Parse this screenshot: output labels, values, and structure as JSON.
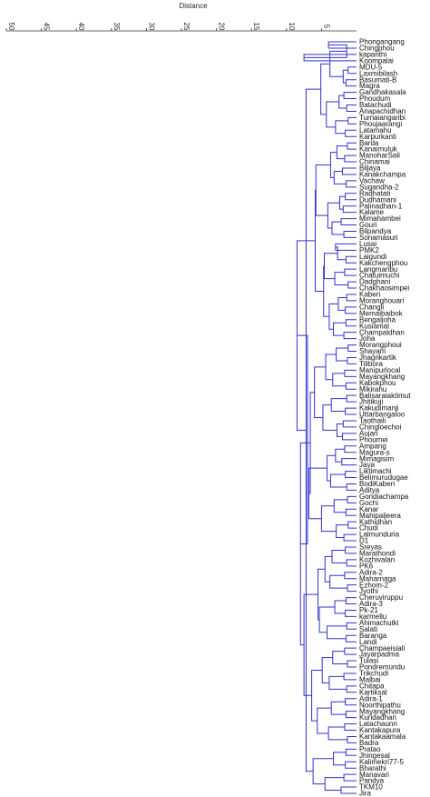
{
  "chart_data": {
    "type": "dendrogram",
    "xlabel": "Distance",
    "xlim": [
      50,
      0
    ],
    "ticks": [
      50,
      45,
      40,
      35,
      30,
      25,
      20,
      15,
      10,
      5
    ],
    "edge_color": "#3333cc",
    "leaves": [
      "Phongangang",
      "Chingphou",
      "kapanthi",
      "Koompalai",
      "MDU-5",
      "Laxmibilash",
      "Basumati-B",
      "Magra",
      "Gandhakasala",
      "Phoudum",
      "Batachudi",
      "Anapachidhan",
      "Turnaiangaribi",
      "Phoujaarangi",
      "Latamahu",
      "Karpurkanti",
      "Barda",
      "Kanaimuluk",
      "ManoharSali",
      "Chinamai",
      "Biljaya",
      "Kanakchampa",
      "Vachaw",
      "Sugandha-2",
      "Radhatati",
      "Dudhamani",
      "Palinadhan-1",
      "Kalame",
      "Mimahambei",
      "Gouri",
      "Bilpandya",
      "Sonamasuri",
      "Lusai",
      "PMK2",
      "Laigundi",
      "Kakchengphou",
      "Langmanbu",
      "Chatuimuchi",
      "Dadghani",
      "Chakhaosimpei",
      "Kaberi",
      "Moranghouari",
      "Changli",
      "Memaibaibok",
      "Bengaljoha",
      "Kusiamal",
      "Champaldhan",
      "Joha",
      "Morangphoui",
      "Shayam",
      "Jhagrikartik",
      "Tilibora",
      "Manipurlocal",
      "Mayangkhang",
      "Kabokphou",
      "Mikirahu",
      "Balisaraiaktimut",
      "Jhitikuji",
      "Kakudimanji",
      "Uttarbangaloo",
      "Taothaili",
      "Chingloechoi",
      "Aujari",
      "Phoumei",
      "Ampang",
      "Magura-s",
      "Mimagisim",
      "Jaya",
      "Liktimachi",
      "Belimurudugae",
      "BodiKaberi",
      "Aditya",
      "Gondiachampa",
      "Gochi",
      "Kanar",
      "Mahipaljeera",
      "Kathidhan",
      "Chudi",
      "Lalmunduria",
      "D1",
      "Sreyas",
      "Marathondi",
      "Kozhivalan",
      "PK6",
      "Adira-2",
      "Maharnaga",
      "Ezhom-2",
      "Jyothi",
      "Cheruviruppu",
      "Adira-3",
      "Pk-21",
      "karmellu",
      "Ahimachutki",
      "Salati",
      "Baranga",
      "Landi",
      "Champaeisiali",
      "Jayarpadma",
      "Tulasi",
      "Pondremundu",
      "Trikchudi",
      "Malbai",
      "Chitapa",
      "Kartiksal",
      "Adira-1",
      "Noorthipathu",
      "Mayangkhang",
      "Kuridadhan",
      "Latachaunri",
      "Kantakapura",
      "Kantakaamala",
      "Badra",
      "Pratao",
      "Jhingesal",
      "Kalimekri77-5",
      "Bharathi",
      "Manavari",
      "Pandya",
      "TKM10",
      "Jira"
    ],
    "links": [
      [
        0,
        1,
        4
      ],
      [
        2,
        3,
        7.5
      ],
      [
        4,
        5,
        1.2
      ],
      [
        6,
        7,
        1.5
      ],
      [
        8,
        9,
        1.8
      ],
      [
        10,
        11,
        1.4
      ],
      [
        12,
        13,
        1.2
      ],
      [
        14,
        15,
        1.6
      ],
      [
        16,
        17,
        1.3
      ],
      [
        18,
        19,
        1.7
      ],
      [
        20,
        21,
        2
      ],
      [
        22,
        23,
        1.5
      ],
      [
        24,
        25,
        1.6
      ],
      [
        26,
        27,
        1.9
      ],
      [
        28,
        29,
        2.2
      ],
      [
        30,
        31,
        1.8
      ],
      [
        32,
        33,
        3
      ],
      [
        34,
        35,
        1.5
      ],
      [
        36,
        37,
        1.7
      ],
      [
        38,
        39,
        1.2
      ],
      [
        40,
        41,
        1.4
      ],
      [
        42,
        43,
        1.6
      ],
      [
        44,
        45,
        1.5
      ],
      [
        46,
        47,
        1.8
      ],
      [
        48,
        49,
        1.2
      ],
      [
        50,
        51,
        1.3
      ],
      [
        52,
        53,
        1.7
      ],
      [
        54,
        55,
        1.5
      ],
      [
        56,
        57,
        1.4
      ],
      [
        58,
        59,
        1.6
      ],
      [
        60,
        61,
        1.9
      ],
      [
        62,
        63,
        2
      ],
      [
        64,
        65,
        1.7
      ],
      [
        66,
        67,
        2.1
      ],
      [
        68,
        69,
        1.6
      ],
      [
        70,
        71,
        1.4
      ],
      [
        72,
        73,
        1.3
      ],
      [
        74,
        75,
        1.5
      ],
      [
        76,
        77,
        1.2
      ],
      [
        78,
        79,
        1.8
      ],
      [
        80,
        81,
        1.6
      ],
      [
        82,
        83,
        1.4
      ],
      [
        84,
        85,
        1.7
      ],
      [
        86,
        87,
        1.3
      ],
      [
        88,
        89,
        1.5
      ],
      [
        90,
        91,
        1.6
      ],
      [
        92,
        93,
        1.4
      ],
      [
        94,
        95,
        1.5
      ],
      [
        96,
        97,
        1.7
      ],
      [
        98,
        99,
        1.3
      ],
      [
        100,
        101,
        1.8
      ],
      [
        102,
        103,
        1.4
      ],
      [
        104,
        105,
        1.6
      ],
      [
        106,
        107,
        1.5
      ],
      [
        108,
        109,
        1.7
      ],
      [
        110,
        111,
        1.3
      ],
      [
        112,
        113,
        1.5
      ],
      [
        114,
        115,
        1.6
      ],
      [
        116,
        117,
        1.8
      ],
      [
        118,
        119,
        2.2
      ],
      [
        120,
        121,
        1.4
      ],
      [
        122,
        123,
        1.9
      ],
      [
        124,
        125,
        2.5
      ],
      [
        126,
        127,
        3
      ],
      [
        128,
        129,
        2.8
      ],
      [
        130,
        131,
        3.2
      ],
      [
        132,
        133,
        2.4
      ],
      [
        134,
        135,
        3.5
      ],
      [
        136,
        137,
        2.7
      ],
      [
        138,
        139,
        3.1
      ],
      [
        140,
        141,
        2.6
      ],
      [
        142,
        143,
        3.3
      ],
      [
        144,
        145,
        2.9
      ],
      [
        146,
        147,
        3.4
      ],
      [
        148,
        149,
        3.6
      ],
      [
        150,
        151,
        2.8
      ],
      [
        152,
        153,
        3
      ],
      [
        154,
        155,
        3.7
      ],
      [
        156,
        157,
        3.2
      ],
      [
        158,
        159,
        2.9
      ],
      [
        160,
        161,
        3.5
      ],
      [
        162,
        163,
        3.8
      ],
      [
        164,
        165,
        3.1
      ],
      [
        166,
        167,
        4.2
      ],
      [
        168,
        169,
        3.4
      ],
      [
        170,
        171,
        3.9
      ],
      [
        172,
        173,
        3.6
      ],
      [
        174,
        175,
        4
      ],
      [
        176,
        177,
        3.3
      ],
      [
        178,
        179,
        4.5
      ],
      [
        180,
        181,
        3.8
      ],
      [
        182,
        183,
        4.3
      ],
      [
        184,
        185,
        3.7
      ],
      [
        186,
        187,
        4.1
      ],
      [
        188,
        189,
        4.6
      ],
      [
        190,
        191,
        3.9
      ],
      [
        192,
        193,
        4.4
      ],
      [
        194,
        195,
        4.8
      ],
      [
        196,
        197,
        4.2
      ],
      [
        198,
        199,
        5
      ],
      [
        200,
        201,
        4.5
      ],
      [
        202,
        203,
        5.3
      ],
      [
        204,
        205,
        4.9
      ],
      [
        206,
        207,
        5.6
      ],
      [
        208,
        209,
        6.2
      ],
      [
        210,
        211,
        5.1
      ],
      [
        212,
        213,
        5.8
      ],
      [
        214,
        215,
        4.7
      ],
      [
        216,
        217,
        6
      ],
      [
        218,
        219,
        6.8
      ],
      [
        220,
        221,
        5.5
      ],
      [
        222,
        223,
        6.4
      ],
      [
        224,
        225,
        7.2
      ],
      [
        226,
        227,
        5.9
      ],
      [
        228,
        229,
        6.6
      ],
      [
        230,
        231,
        7.5
      ],
      [
        232,
        233,
        8.5
      ],
      [
        234,
        235,
        8
      ],
      [
        236,
        237,
        7
      ],
      [
        238,
        239,
        9.5
      ],
      [
        240,
        241,
        7.8
      ],
      [
        242,
        243,
        8.8
      ],
      [
        244,
        245,
        10
      ],
      [
        246,
        247,
        6.9
      ],
      [
        248,
        249,
        11
      ],
      [
        250,
        251,
        9
      ],
      [
        252,
        253,
        12
      ],
      [
        254,
        255,
        10.5
      ],
      [
        256,
        257,
        13.5
      ],
      [
        258,
        259,
        15
      ],
      [
        260,
        261,
        11.5
      ],
      [
        262,
        263,
        14
      ],
      [
        264,
        265,
        16
      ],
      [
        266,
        267,
        8.2
      ],
      [
        268,
        269,
        12.5
      ],
      [
        270,
        271,
        17
      ],
      [
        272,
        273,
        20
      ],
      [
        274,
        275,
        14.5
      ],
      [
        276,
        277,
        18
      ],
      [
        278,
        279,
        24
      ],
      [
        280,
        281,
        13
      ],
      [
        282,
        283,
        19
      ],
      [
        284,
        285,
        23
      ],
      [
        286,
        287,
        21
      ],
      [
        288,
        289,
        26
      ],
      [
        290,
        291,
        25.5
      ],
      [
        292,
        293,
        27
      ],
      [
        294,
        295,
        49
      ]
    ]
  }
}
